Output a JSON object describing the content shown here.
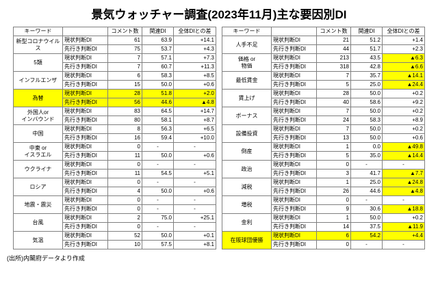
{
  "title": "景気ウォッチャー調査(2023年11月)主な要因別DI",
  "source_note": "(出所)内閣府データより作成",
  "header": {
    "keyword": "キーワード",
    "judgment": "",
    "comments": "コメント数",
    "related_di": "関連DI",
    "diff": "全体DIとの差"
  },
  "row_labels": {
    "current": "現状判断DI",
    "outlook": "先行き判断DI"
  },
  "colors": {
    "highlight": "#ffff00",
    "border": "#7f7f7f",
    "negative_marker": "▲"
  },
  "chart_data": {
    "type": "table",
    "tables": [
      {
        "name": "left",
        "rows": [
          {
            "keyword": "新型コロナウイルス",
            "hl": "none",
            "current": {
              "comments": "61",
              "di": "63.9",
              "diff": "+14.1"
            },
            "outlook": {
              "comments": "75",
              "di": "53.7",
              "diff": "+4.3"
            }
          },
          {
            "keyword": "5類",
            "hl": "none",
            "current": {
              "comments": "7",
              "di": "57.1",
              "diff": "+7.3"
            },
            "outlook": {
              "comments": "7",
              "di": "60.7",
              "diff": "+11.3"
            }
          },
          {
            "keyword": "インフルエンザ",
            "hl": "none",
            "current": {
              "comments": "6",
              "di": "58.3",
              "diff": "+8.5"
            },
            "outlook": {
              "comments": "15",
              "di": "50.0",
              "diff": "+0.6"
            }
          },
          {
            "keyword": "為替",
            "hl": "all",
            "current": {
              "comments": "28",
              "di": "51.8",
              "diff": "+2.0"
            },
            "outlook": {
              "comments": "56",
              "di": "44.6",
              "diff": "▲4.8"
            }
          },
          {
            "keyword": "外国人or\nインバウンド",
            "hl": "none",
            "current": {
              "comments": "83",
              "di": "64.5",
              "diff": "+14.7"
            },
            "outlook": {
              "comments": "80",
              "di": "58.1",
              "diff": "+8.7"
            }
          },
          {
            "keyword": "中国",
            "hl": "none",
            "current": {
              "comments": "8",
              "di": "56.3",
              "diff": "+6.5"
            },
            "outlook": {
              "comments": "16",
              "di": "59.4",
              "diff": "+10.0"
            }
          },
          {
            "keyword": "中東 or\nイスラエル",
            "hl": "none",
            "current": {
              "comments": "0",
              "di": "-",
              "diff": "-"
            },
            "outlook": {
              "comments": "11",
              "di": "50.0",
              "diff": "+0.6"
            }
          },
          {
            "keyword": "ウクライナ",
            "hl": "none",
            "current": {
              "comments": "0",
              "di": "-",
              "diff": "-"
            },
            "outlook": {
              "comments": "11",
              "di": "54.5",
              "diff": "+5.1"
            }
          },
          {
            "keyword": "ロシア",
            "hl": "none",
            "current": {
              "comments": "0",
              "di": "-",
              "diff": "-"
            },
            "outlook": {
              "comments": "4",
              "di": "50.0",
              "diff": "+0.6"
            }
          },
          {
            "keyword": "地震・震災",
            "hl": "none",
            "current": {
              "comments": "0",
              "di": "-",
              "diff": "-"
            },
            "outlook": {
              "comments": "0",
              "di": "-",
              "diff": "-"
            }
          },
          {
            "keyword": "台風",
            "hl": "none",
            "current": {
              "comments": "2",
              "di": "75.0",
              "diff": "+25.1"
            },
            "outlook": {
              "comments": "0",
              "di": "-",
              "diff": "-"
            }
          },
          {
            "keyword": "気温",
            "hl": "none",
            "current": {
              "comments": "52",
              "di": "50.0",
              "diff": "+0.1"
            },
            "outlook": {
              "comments": "10",
              "di": "57.5",
              "diff": "+8.1"
            }
          }
        ]
      },
      {
        "name": "right",
        "rows": [
          {
            "keyword": "人手不足",
            "hl": "none",
            "current": {
              "comments": "21",
              "di": "51.2",
              "diff": "+1.4"
            },
            "outlook": {
              "comments": "44",
              "di": "51.7",
              "diff": "+2.3"
            }
          },
          {
            "keyword": "価格 or\n物価",
            "hl": "none",
            "current": {
              "comments": "213",
              "di": "43.5",
              "diff": "▲6.3"
            },
            "outlook": {
              "comments": "318",
              "di": "42.8",
              "diff": "▲6.6"
            }
          },
          {
            "keyword": "最低賃金",
            "hl": "none",
            "current": {
              "comments": "7",
              "di": "35.7",
              "diff": "▲14.1"
            },
            "outlook": {
              "comments": "5",
              "di": "25.0",
              "diff": "▲24.4"
            }
          },
          {
            "keyword": "賃上げ",
            "hl": "none",
            "current": {
              "comments": "28",
              "di": "50.0",
              "diff": "+0.2"
            },
            "outlook": {
              "comments": "40",
              "di": "58.6",
              "diff": "+9.2"
            }
          },
          {
            "keyword": "ボーナス",
            "hl": "none",
            "current": {
              "comments": "7",
              "di": "50.0",
              "diff": "+0.2"
            },
            "outlook": {
              "comments": "24",
              "di": "58.3",
              "diff": "+8.9"
            }
          },
          {
            "keyword": "設備投資",
            "hl": "none",
            "current": {
              "comments": "7",
              "di": "50.0",
              "diff": "+0.2"
            },
            "outlook": {
              "comments": "13",
              "di": "50.0",
              "diff": "+0.6"
            }
          },
          {
            "keyword": "倒産",
            "hl": "none",
            "current": {
              "comments": "1",
              "di": "0.0",
              "diff": "▲49.8"
            },
            "outlook": {
              "comments": "5",
              "di": "35.0",
              "diff": "▲14.4"
            }
          },
          {
            "keyword": "政治",
            "hl": "none",
            "current": {
              "comments": "0",
              "di": "-",
              "diff": "-"
            },
            "outlook": {
              "comments": "3",
              "di": "41.7",
              "diff": "▲7.7"
            }
          },
          {
            "keyword": "減税",
            "hl": "none",
            "current": {
              "comments": "1",
              "di": "25.0",
              "diff": "▲24.8"
            },
            "outlook": {
              "comments": "26",
              "di": "44.6",
              "diff": "▲4.8"
            }
          },
          {
            "keyword": "増税",
            "hl": "none",
            "current": {
              "comments": "0",
              "di": "-",
              "diff": "-"
            },
            "outlook": {
              "comments": "9",
              "di": "30.6",
              "diff": "▲18.8"
            }
          },
          {
            "keyword": "金利",
            "hl": "none",
            "current": {
              "comments": "1",
              "di": "50.0",
              "diff": "+0.2"
            },
            "outlook": {
              "comments": "14",
              "di": "37.5",
              "diff": "▲11.9"
            }
          },
          {
            "keyword": "在阪球団優勝",
            "hl": "current",
            "current": {
              "comments": "6",
              "di": "54.2",
              "diff": "+4.4"
            },
            "outlook": {
              "comments": "0",
              "di": "-",
              "diff": "-"
            }
          }
        ]
      }
    ]
  }
}
